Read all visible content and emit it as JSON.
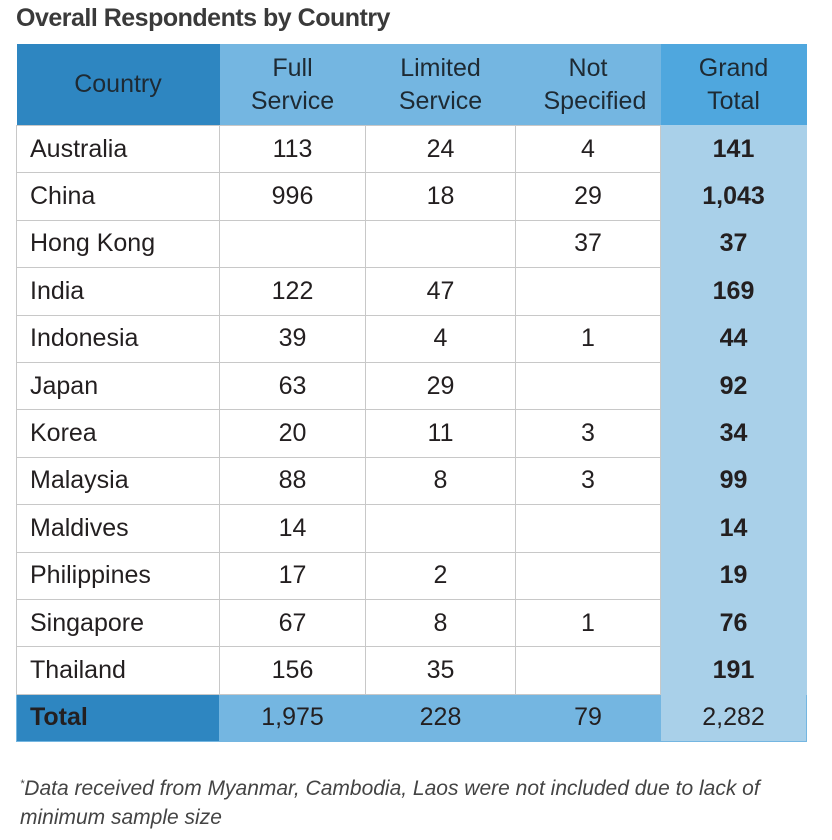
{
  "title": "Overall Respondents by Country",
  "chart_data": {
    "type": "table",
    "title": "Overall Respondents by Country",
    "columns": [
      "Country",
      "Full Service",
      "Limited Service",
      "Not Specified",
      "Grand Total"
    ],
    "rows": [
      [
        "Australia",
        "113",
        "24",
        "4",
        "141"
      ],
      [
        "China",
        "996",
        "18",
        "29",
        "1,043"
      ],
      [
        "Hong Kong",
        "",
        "",
        "37",
        "37"
      ],
      [
        "India",
        "122",
        "47",
        "",
        "169"
      ],
      [
        "Indonesia",
        "39",
        "4",
        "1",
        "44"
      ],
      [
        "Japan",
        "63",
        "29",
        "",
        "92"
      ],
      [
        "Korea",
        "20",
        "11",
        "3",
        "34"
      ],
      [
        "Malaysia",
        "88",
        "8",
        "3",
        "99"
      ],
      [
        "Maldives",
        "14",
        "",
        "",
        "14"
      ],
      [
        "Philippines",
        "17",
        "2",
        "",
        "19"
      ],
      [
        "Singapore",
        "67",
        "8",
        "1",
        "76"
      ],
      [
        "Thailand",
        "156",
        "35",
        "",
        "191"
      ]
    ],
    "total": [
      "Total",
      "1,975",
      "228",
      "79",
      "2,282"
    ]
  },
  "footnote": {
    "marker": "*",
    "text": "Data received from Myanmar, Cambodia, Laos were not included due to lack of minimum sample size"
  },
  "colors": {
    "header_dark": "#2e86c1",
    "header_light": "#74b6e1",
    "grand_header": "#4fa7de",
    "grand_body": "#a9d0e9"
  }
}
